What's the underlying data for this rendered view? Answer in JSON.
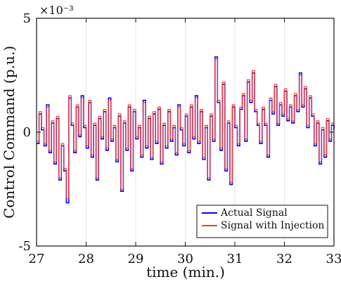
{
  "chart_data": {
    "type": "line",
    "title": "",
    "xlabel": "time (min.)",
    "ylabel": "Control Command (p.u.)",
    "xlim": [
      27,
      33
    ],
    "ylim": [
      -0.005,
      0.005
    ],
    "xticks": [
      "27",
      "28",
      "29",
      "30",
      "31",
      "32",
      "33"
    ],
    "yticks": [
      "-5",
      "0",
      "5"
    ],
    "y_exponent_label": "×10⁻³",
    "grid": {
      "x": true,
      "y": false,
      "color": "#e6e6e6"
    },
    "legend": {
      "position": "bottom-right",
      "items": [
        "Actual Signal",
        "Signal with Injection"
      ]
    },
    "series": [
      {
        "name": "Actual Signal",
        "color": "#0000ff",
        "x": [
          27.0,
          27.05,
          27.1,
          27.15,
          27.2,
          27.25,
          27.3,
          27.35,
          27.4,
          27.45,
          27.5,
          27.55,
          27.6,
          27.65,
          27.7,
          27.75,
          27.8,
          27.85,
          27.9,
          27.95,
          28.0,
          28.05,
          28.1,
          28.15,
          28.2,
          28.25,
          28.3,
          28.35,
          28.4,
          28.45,
          28.5,
          28.55,
          28.6,
          28.65,
          28.7,
          28.75,
          28.8,
          28.85,
          28.9,
          28.95,
          29.0,
          29.05,
          29.1,
          29.15,
          29.2,
          29.25,
          29.3,
          29.35,
          29.4,
          29.45,
          29.5,
          29.55,
          29.6,
          29.65,
          29.7,
          29.75,
          29.8,
          29.85,
          29.9,
          29.95,
          30.0,
          30.05,
          30.1,
          30.15,
          30.2,
          30.25,
          30.3,
          30.35,
          30.4,
          30.45,
          30.5,
          30.55,
          30.6,
          30.65,
          30.7,
          30.75,
          30.8,
          30.85,
          30.9,
          30.95,
          31.0,
          31.05,
          31.1,
          31.15,
          31.2,
          31.25,
          31.3,
          31.35,
          31.4,
          31.45,
          31.5,
          31.55,
          31.6,
          31.65,
          31.7,
          31.75,
          31.8,
          31.85,
          31.9,
          31.95,
          32.0,
          32.05,
          32.1,
          32.15,
          32.2,
          32.25,
          32.3,
          32.35,
          32.4,
          32.45,
          32.5,
          32.55,
          32.6,
          32.65,
          32.7,
          32.75,
          32.8,
          32.85,
          32.9,
          32.95,
          33.0
        ],
        "y": [
          -0.0005,
          0.0008,
          0.0001,
          -0.0006,
          0.0012,
          -0.0009,
          0.0004,
          -0.0014,
          0.0006,
          -0.0021,
          -0.0006,
          -0.0017,
          -0.0031,
          0.0015,
          0.0003,
          -0.0009,
          0.0011,
          -0.0002,
          0.0016,
          0.0002,
          -0.0007,
          0.0013,
          -0.0011,
          0.0003,
          -0.0021,
          0.0006,
          -0.0003,
          0.0009,
          -0.0008,
          0.0015,
          -0.0004,
          0.0002,
          -0.0013,
          0.0007,
          -0.0026,
          0.0004,
          -0.0008,
          0.0011,
          -0.0017,
          0.0009,
          -0.0003,
          0.0002,
          -0.0011,
          0.0014,
          -0.0007,
          0.0006,
          -0.0012,
          0.0008,
          -0.0005,
          0.001,
          -0.0014,
          0.0003,
          -0.0007,
          0.0009,
          -0.0004,
          0.0002,
          -0.001,
          0.0012,
          0.0001,
          -0.0006,
          0.0007,
          -0.0009,
          0.0011,
          -0.0003,
          0.0016,
          -0.0005,
          0.0009,
          -0.0012,
          0.0002,
          -0.0021,
          0.0007,
          -0.0004,
          0.0033,
          0.0013,
          -0.0008,
          0.0021,
          -0.0017,
          0.0004,
          -0.0023,
          0.0011,
          0.0002,
          -0.0006,
          0.001,
          0.0016,
          -0.0004,
          0.0022,
          0.0013,
          0.0026,
          0.0009,
          0.0003,
          -0.0005,
          0.001,
          0.0003,
          -0.0011,
          0.0014,
          0.0008,
          0.002,
          0.0003,
          0.0012,
          0.0007,
          0.0018,
          0.0005,
          0.0011,
          0.0004,
          0.0016,
          0.0009,
          0.0026,
          0.0011,
          0.0019,
          0.0002,
          0.0015,
          0.0007,
          -0.0006,
          0.0004,
          -0.0014,
          0.0001,
          -0.0011,
          0.0005,
          -0.0004,
          0.0003,
          0.0001
        ]
      },
      {
        "name": "Signal with Injection",
        "color": "#ff3b1f",
        "x": [
          27.0,
          27.05,
          27.1,
          27.15,
          27.2,
          27.25,
          27.3,
          27.35,
          27.4,
          27.45,
          27.5,
          27.55,
          27.6,
          27.65,
          27.7,
          27.75,
          27.8,
          27.85,
          27.9,
          27.95,
          28.0,
          28.05,
          28.1,
          28.15,
          28.2,
          28.25,
          28.3,
          28.35,
          28.4,
          28.45,
          28.5,
          28.55,
          28.6,
          28.65,
          28.7,
          28.75,
          28.8,
          28.85,
          28.9,
          28.95,
          29.0,
          29.05,
          29.1,
          29.15,
          29.2,
          29.25,
          29.3,
          29.35,
          29.4,
          29.45,
          29.5,
          29.55,
          29.6,
          29.65,
          29.7,
          29.75,
          29.8,
          29.85,
          29.9,
          29.95,
          30.0,
          30.05,
          30.1,
          30.15,
          30.2,
          30.25,
          30.3,
          30.35,
          30.4,
          30.45,
          30.5,
          30.55,
          30.6,
          30.65,
          30.7,
          30.75,
          30.8,
          30.85,
          30.9,
          30.95,
          31.0,
          31.05,
          31.1,
          31.15,
          31.2,
          31.25,
          31.3,
          31.35,
          31.4,
          31.45,
          31.5,
          31.55,
          31.6,
          31.65,
          31.7,
          31.75,
          31.8,
          31.85,
          31.9,
          31.95,
          32.0,
          32.05,
          32.1,
          32.15,
          32.2,
          32.25,
          32.3,
          32.35,
          32.4,
          32.45,
          32.5,
          32.55,
          32.6,
          32.65,
          32.7,
          32.75,
          32.8,
          32.85,
          32.9,
          32.95,
          33.0
        ],
        "y": [
          -0.0004,
          0.0009,
          0.0002,
          -0.0005,
          0.0011,
          -0.0008,
          0.0005,
          -0.0013,
          0.0007,
          -0.002,
          -0.0005,
          -0.0016,
          -0.0029,
          0.0016,
          0.0004,
          -0.0008,
          0.0012,
          -0.0001,
          0.0015,
          0.0003,
          -0.0006,
          0.0014,
          -0.001,
          0.0004,
          -0.002,
          0.0007,
          -0.0002,
          0.001,
          -0.0007,
          0.0014,
          -0.0003,
          0.0003,
          -0.0012,
          0.0008,
          -0.0025,
          0.0005,
          -0.0007,
          0.0012,
          -0.0016,
          0.001,
          -0.0002,
          0.0003,
          -0.001,
          0.0013,
          -0.0006,
          0.0007,
          -0.0011,
          0.0009,
          -0.0004,
          0.0011,
          -0.0013,
          0.0004,
          -0.0006,
          0.001,
          -0.0003,
          0.0003,
          -0.0009,
          0.0011,
          0.0002,
          -0.0005,
          0.0008,
          -0.0008,
          0.0012,
          -0.0002,
          0.0015,
          -0.0004,
          0.001,
          -0.0011,
          0.0003,
          -0.002,
          0.0008,
          -0.0003,
          0.0032,
          0.0014,
          -0.0007,
          0.0022,
          -0.0016,
          0.0005,
          -0.0022,
          0.0012,
          0.0003,
          -0.0005,
          0.0011,
          0.0017,
          -0.0003,
          0.0023,
          0.0014,
          0.0027,
          0.001,
          0.0004,
          -0.0004,
          0.0011,
          0.0004,
          -0.001,
          0.0015,
          0.0009,
          0.0021,
          0.0004,
          0.0013,
          0.0008,
          0.0019,
          0.0006,
          0.0012,
          0.0005,
          0.0017,
          0.001,
          0.0025,
          0.0012,
          0.002,
          0.0003,
          0.0016,
          0.0008,
          -0.0005,
          0.0005,
          -0.0013,
          0.0002,
          -0.001,
          0.0006,
          -0.0003,
          0.0004,
          0.0002
        ]
      }
    ]
  }
}
